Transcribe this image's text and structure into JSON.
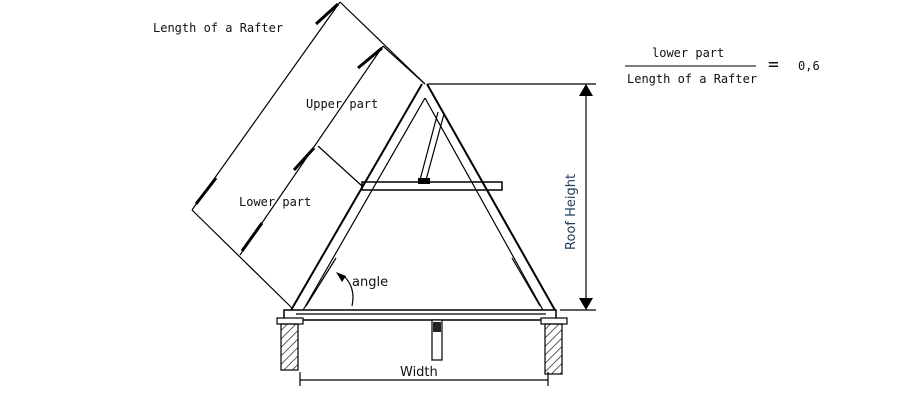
{
  "labels": {
    "rafter_length": "Length of a Rafter",
    "upper_part": "Upper part",
    "lower_part": "Lower part",
    "roof_height": "Roof Height",
    "angle": "angle",
    "width": "Width"
  },
  "formula": {
    "numerator": "lower part",
    "denominator": "Length of a Rafter",
    "operator": "=",
    "value": "0,6"
  }
}
